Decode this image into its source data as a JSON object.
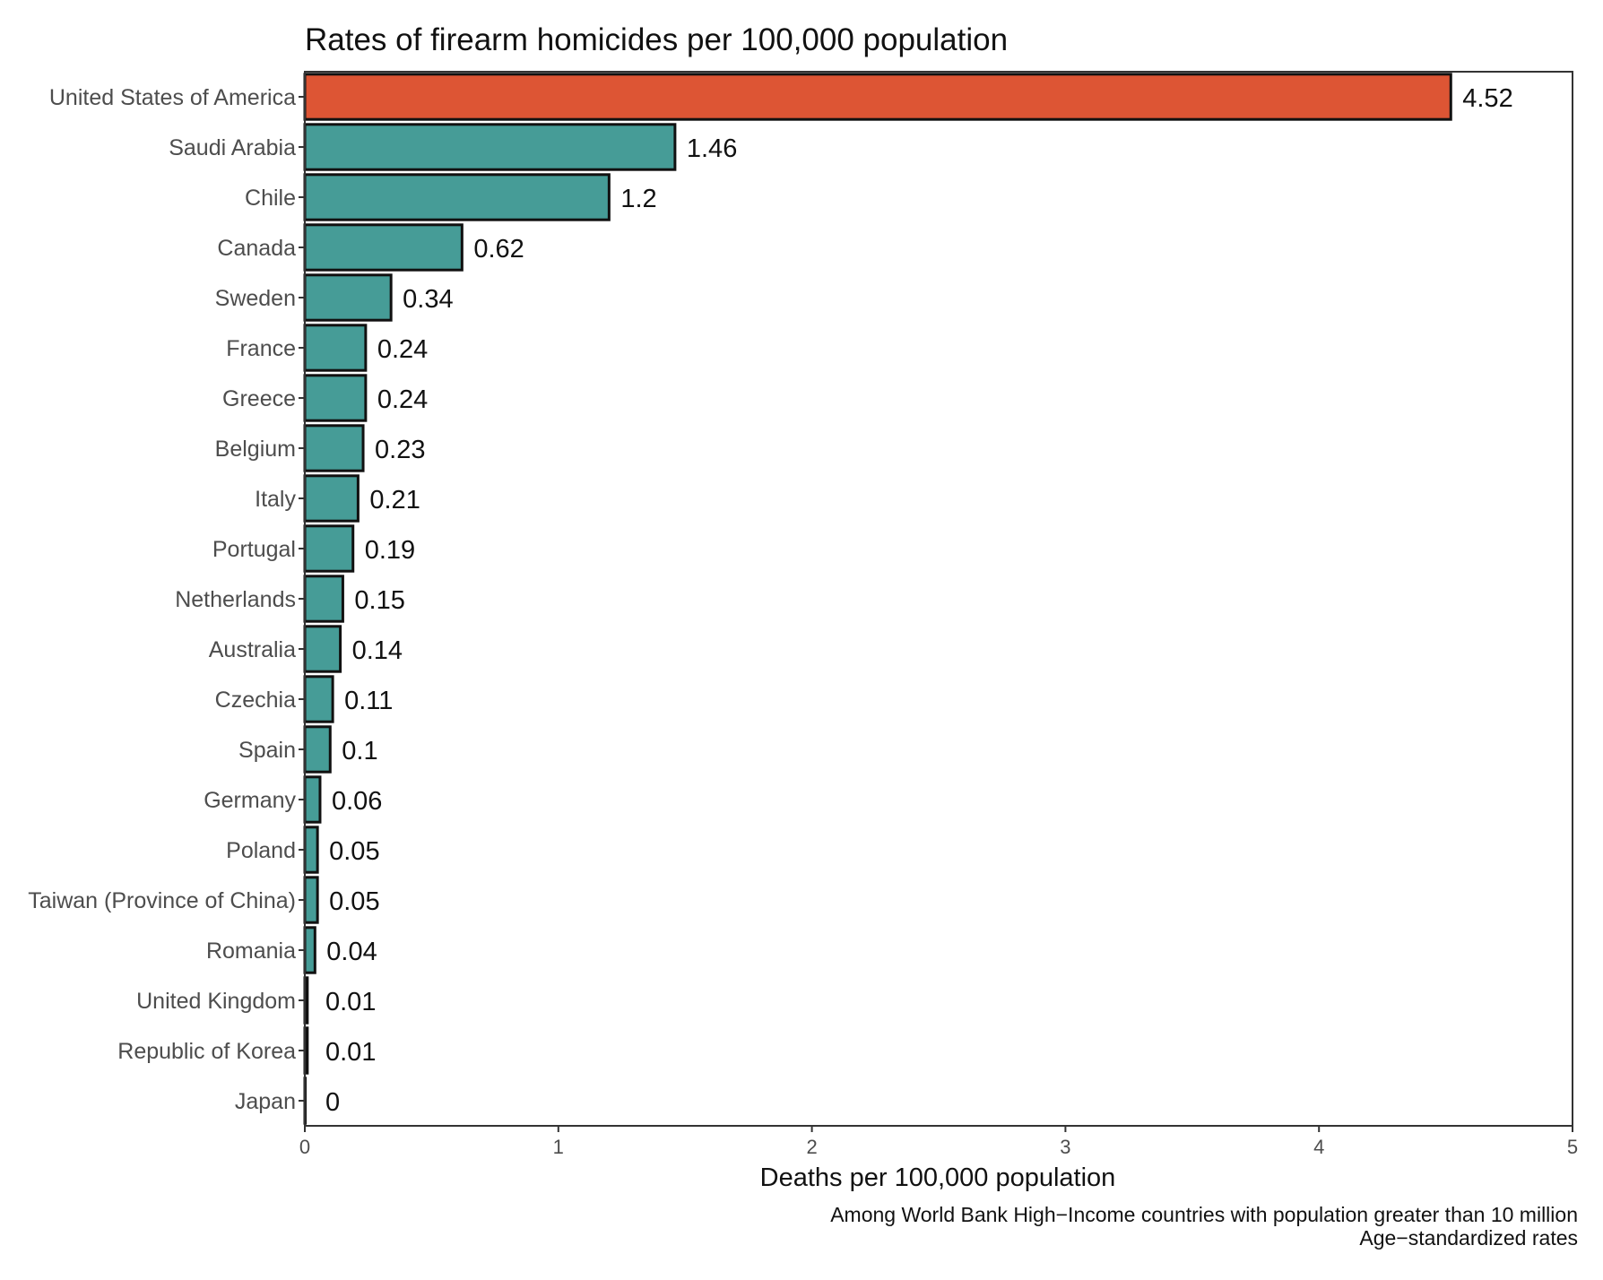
{
  "chart_data": {
    "type": "bar",
    "orientation": "horizontal",
    "title": "Rates of firearm homicides per 100,000 population",
    "xlabel": "Deaths per 100,000 population",
    "ylabel": "",
    "xlim": [
      0,
      5
    ],
    "x_ticks": [
      "0",
      "1",
      "2",
      "3",
      "4",
      "5"
    ],
    "categories": [
      "United States of America",
      "Saudi Arabia",
      "Chile",
      "Canada",
      "Sweden",
      "France",
      "Greece",
      "Belgium",
      "Italy",
      "Portugal",
      "Netherlands",
      "Australia",
      "Czechia",
      "Spain",
      "Germany",
      "Poland",
      "Taiwan (Province of China)",
      "Romania",
      "United Kingdom",
      "Republic of Korea",
      "Japan"
    ],
    "values": [
      4.52,
      1.46,
      1.2,
      0.62,
      0.34,
      0.24,
      0.24,
      0.23,
      0.21,
      0.19,
      0.15,
      0.14,
      0.11,
      0.1,
      0.06,
      0.05,
      0.05,
      0.04,
      0.01,
      0.01,
      0
    ],
    "value_labels": [
      "4.52",
      "1.46",
      "1.2",
      "0.62",
      "0.34",
      "0.24",
      "0.24",
      "0.23",
      "0.21",
      "0.19",
      "0.15",
      "0.14",
      "0.11",
      "0.1",
      "0.06",
      "0.05",
      "0.05",
      "0.04",
      "0.01",
      "0.01",
      "0"
    ],
    "highlight_color": "#dd5534",
    "bar_color": "#469c97",
    "grid": false,
    "legend": "none",
    "captions": [
      "Among World Bank High−Income countries with population greater than 10 million",
      "Age−standardized rates"
    ]
  }
}
